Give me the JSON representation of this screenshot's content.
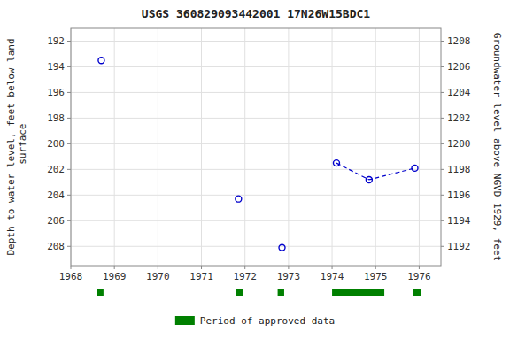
{
  "chart_data": {
    "type": "scatter",
    "title": "USGS 360829093442001 17N26W15BDC1",
    "ylabel": "Depth to water level, feet below land\n surface",
    "y2label": "Groundwater level above NGVD 1929, feet",
    "xlim": [
      1968,
      1976.5
    ],
    "ylim": [
      209.5,
      191.0
    ],
    "y2lim": [
      1190.5,
      1209.0
    ],
    "xticks": [
      1968,
      1969,
      1970,
      1971,
      1972,
      1973,
      1974,
      1975,
      1976
    ],
    "yticks": [
      192,
      194,
      196,
      198,
      200,
      202,
      204,
      206,
      208
    ],
    "y2ticks": [
      1208,
      1206,
      1204,
      1202,
      1200,
      1198,
      1196,
      1194,
      1192
    ],
    "grid": true,
    "legend": "bottom",
    "series": [
      {
        "type": "scatter",
        "marker": "circle",
        "line_style": "none",
        "color": "#0000cc",
        "x": [
          1968.7,
          1971.85,
          1972.85,
          1974.1,
          1974.85,
          1975.9
        ],
        "values": [
          193.5,
          204.3,
          208.1,
          201.5,
          202.8,
          201.9
        ]
      },
      {
        "type": "line",
        "marker": "none",
        "line_style": "dashed",
        "color": "#0000cc",
        "x": [
          1974.1,
          1974.85,
          1975.9
        ],
        "values": [
          201.5,
          202.8,
          201.9
        ]
      }
    ],
    "approved_periods": {
      "name": "Period of approved data",
      "color": "#008000",
      "x": [
        [
          1968.6,
          1968.75
        ],
        [
          1971.8,
          1971.95
        ],
        [
          1972.75,
          1972.9
        ],
        [
          1974.0,
          1975.2
        ],
        [
          1975.85,
          1976.05
        ]
      ]
    }
  }
}
